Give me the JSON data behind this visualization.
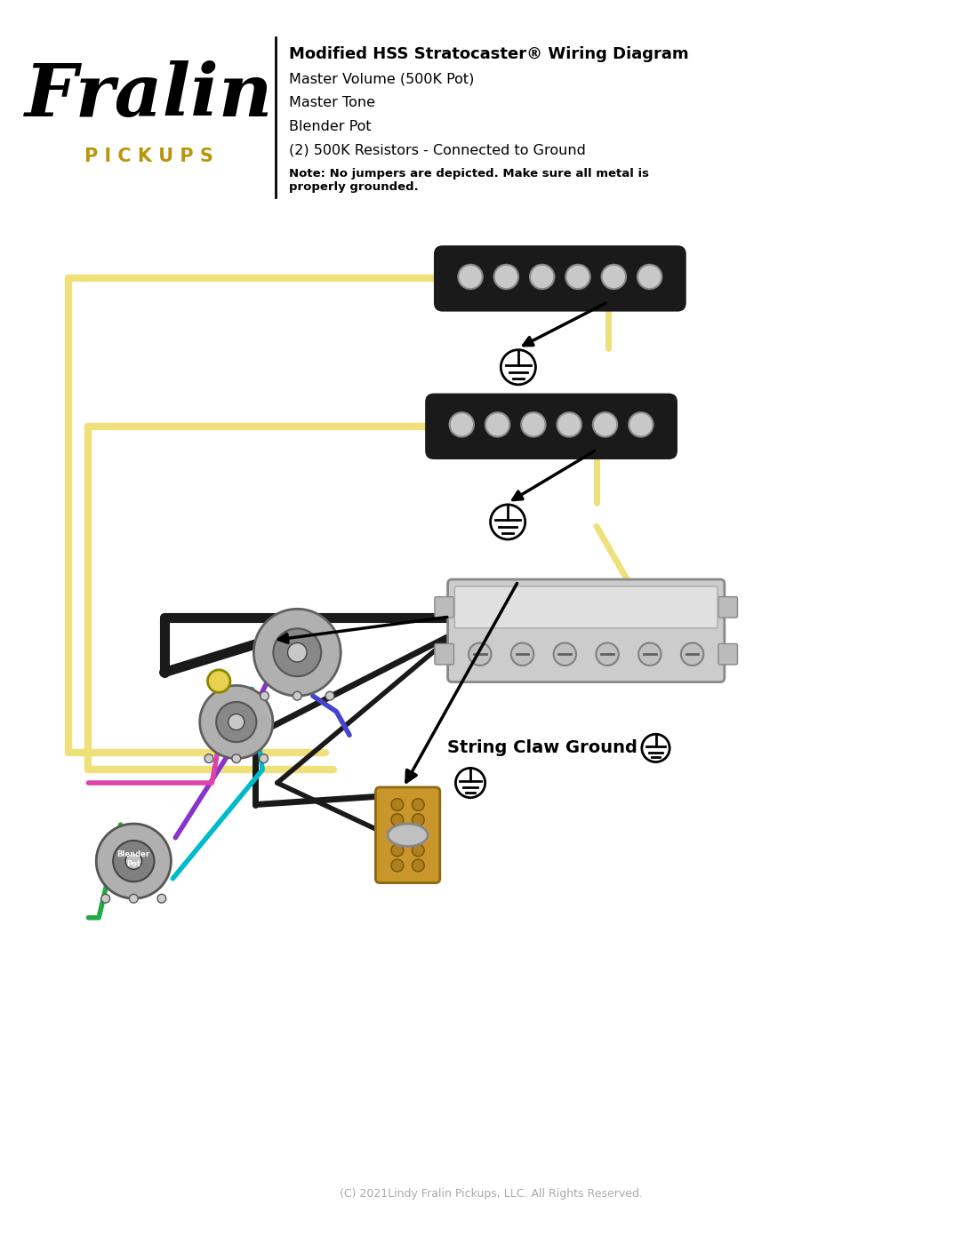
{
  "title": "Modified HSS Stratocaster® Wiring Diagram",
  "subtitle_lines": [
    "Master Volume (500K Pot)",
    "Master Tone",
    "Blender Pot",
    "(2) 500K Resistors - Connected to Ground"
  ],
  "note_text": "Note: No jumpers are depicted. Make sure all metal is\nproperly grounded.",
  "copyright_text": "(C) 2021Lindy Fralin Pickups, LLC. All Rights Reserved.",
  "string_claw_label": "String Claw Ground",
  "bg_color": "#ffffff",
  "logo_color": "#000000",
  "pickups_text_color": "#b8960c",
  "wire_yellow": "#f0e07a",
  "wire_black": "#1a1a1a",
  "wire_blue": "#4444cc",
  "wire_cyan": "#00bbcc",
  "wire_purple": "#8833cc",
  "wire_green": "#22aa44",
  "wire_pink": "#dd44aa",
  "pickup_body_color": "#1a1a1a",
  "humbucker_body_color": "#c8c8c8",
  "ground_symbol_color": "#000000"
}
